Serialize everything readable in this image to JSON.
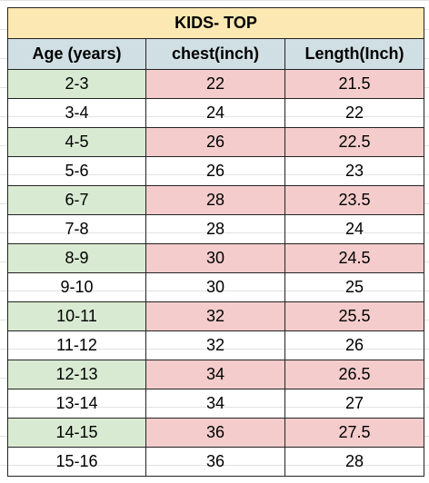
{
  "table": {
    "title": "KIDS- TOP",
    "header": [
      "Age (years)",
      "chest(inch)",
      "Length(Inch)"
    ],
    "rows": [
      [
        "2-3",
        22,
        21.5
      ],
      [
        "3-4",
        24,
        22
      ],
      [
        "4-5",
        26,
        22.5
      ],
      [
        "5-6",
        26,
        23
      ],
      [
        "6-7",
        28,
        23.5
      ],
      [
        "7-8",
        28,
        24
      ],
      [
        "8-9",
        30,
        24.5
      ],
      [
        "9-10",
        30,
        25
      ],
      [
        "10-11",
        32,
        25.5
      ],
      [
        "11-12",
        32,
        26
      ],
      [
        "12-13",
        34,
        26.5
      ],
      [
        "13-14",
        34,
        27
      ],
      [
        "14-15",
        36,
        27.5
      ],
      [
        "15-16",
        36,
        28
      ]
    ]
  }
}
